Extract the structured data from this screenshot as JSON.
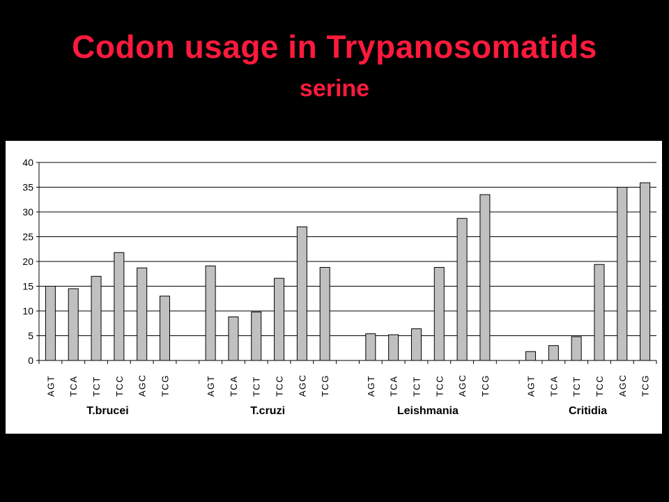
{
  "slide": {
    "title": "Codon usage in Trypanosomatids",
    "subtitle": "serine"
  },
  "colors": {
    "background": "#000000",
    "title": "#ff1a3d",
    "bar_fill": "#c0c0c0",
    "bar_stroke": "#000000",
    "grid": "#000000",
    "panel": "#ffffff"
  },
  "chart_data": {
    "type": "bar",
    "title": "",
    "xlabel": "",
    "ylabel": "",
    "ylim": [
      0,
      40
    ],
    "yticks": [
      0,
      5,
      10,
      15,
      20,
      25,
      30,
      35,
      40
    ],
    "grid": true,
    "legend": "none",
    "groups": [
      {
        "name": "T.brucei",
        "categories": [
          "AGT",
          "TCA",
          "TCT",
          "TCC",
          "AGC",
          "TCG"
        ],
        "values": [
          15,
          14.5,
          17,
          21.8,
          18.7,
          13
        ]
      },
      {
        "name": "T.cruzi",
        "categories": [
          "AGT",
          "TCA",
          "TCT",
          "TCC",
          "AGC",
          "TCG"
        ],
        "values": [
          19.1,
          8.8,
          9.8,
          16.6,
          27,
          18.8
        ]
      },
      {
        "name": "Leishmania",
        "categories": [
          "AGT",
          "TCA",
          "TCT",
          "TCC",
          "AGC",
          "TCG"
        ],
        "values": [
          5.4,
          5.2,
          6.4,
          18.8,
          28.7,
          33.5
        ]
      },
      {
        "name": "Critidia",
        "categories": [
          "AGT",
          "TCA",
          "TCT",
          "TCC",
          "AGC",
          "TCG"
        ],
        "values": [
          1.8,
          3,
          4.8,
          19.4,
          35,
          35.9
        ]
      }
    ]
  }
}
